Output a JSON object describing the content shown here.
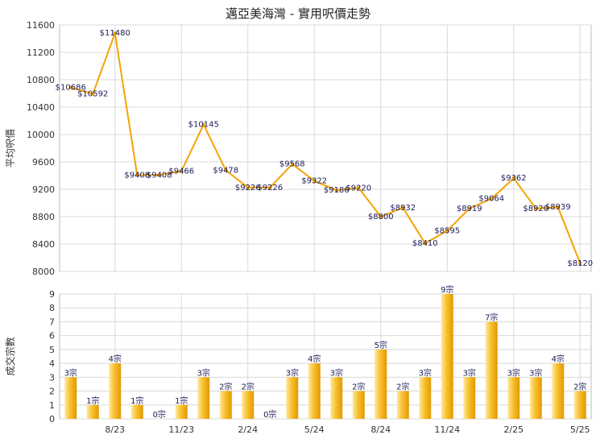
{
  "title": "邁亞美海灣 - 實用呎價走勢",
  "colors": {
    "line": "#f5a300",
    "bar_light": "#ffe9a0",
    "bar_dark": "#e8a000",
    "grid": "#d8d8d8"
  },
  "chart_data": [
    {
      "type": "line",
      "ylabel": "平均呎價",
      "ylim": [
        8000,
        11600
      ],
      "yticks": [
        8000,
        8400,
        8800,
        9200,
        9600,
        10000,
        10400,
        10800,
        11200,
        11600
      ],
      "xtick_labels": [
        "8/23",
        "11/23",
        "2/24",
        "5/24",
        "8/24",
        "11/24",
        "2/25",
        "5/25"
      ],
      "x": [
        "6/23",
        "7/23",
        "8/23",
        "9/23",
        "10/23",
        "11/23",
        "12/23",
        "1/24",
        "2/24",
        "3/24",
        "4/24",
        "5/24",
        "6/24",
        "7/24",
        "8/24",
        "9/24",
        "10/24",
        "11/24",
        "12/24",
        "1/25",
        "2/25",
        "3/25",
        "4/25",
        "5/25"
      ],
      "values": [
        10686,
        10592,
        11480,
        9408,
        9408,
        9466,
        10145,
        9478,
        9226,
        9226,
        9568,
        9322,
        9186,
        9220,
        8800,
        8932,
        8410,
        8595,
        8919,
        9064,
        9362,
        8920,
        8939,
        8120
      ],
      "data_labels": [
        "$10686",
        "$10592",
        "$11480",
        "$9408",
        "$9408",
        "$9466",
        "$10145",
        "$9478",
        "$9226",
        "$9226",
        "$9568",
        "$9322",
        "$9186",
        "$9220",
        "$8800",
        "$8932",
        "$8410",
        "$8595",
        "$8919",
        "$9064",
        "$9362",
        "$8920",
        "$8939",
        "$8120"
      ]
    },
    {
      "type": "bar",
      "ylabel": "成交宗數",
      "ylim": [
        0,
        9
      ],
      "yticks": [
        0,
        1,
        2,
        3,
        4,
        5,
        6,
        7,
        8,
        9
      ],
      "xtick_labels": [
        "8/23",
        "11/23",
        "2/24",
        "5/24",
        "8/24",
        "11/24",
        "2/25",
        "5/25"
      ],
      "values": [
        3,
        1,
        4,
        1,
        0,
        1,
        3,
        2,
        2,
        0,
        3,
        4,
        3,
        2,
        5,
        2,
        3,
        9,
        3,
        7,
        3,
        3,
        4,
        2
      ],
      "data_labels": [
        "3宗",
        "1宗",
        "4宗",
        "1宗",
        "0宗",
        "1宗",
        "3宗",
        "2宗",
        "2宗",
        "0宗",
        "3宗",
        "4宗",
        "3宗",
        "2宗",
        "5宗",
        "2宗",
        "3宗",
        "9宗",
        "3宗",
        "7宗",
        "3宗",
        "3宗",
        "4宗",
        "2宗"
      ]
    }
  ]
}
